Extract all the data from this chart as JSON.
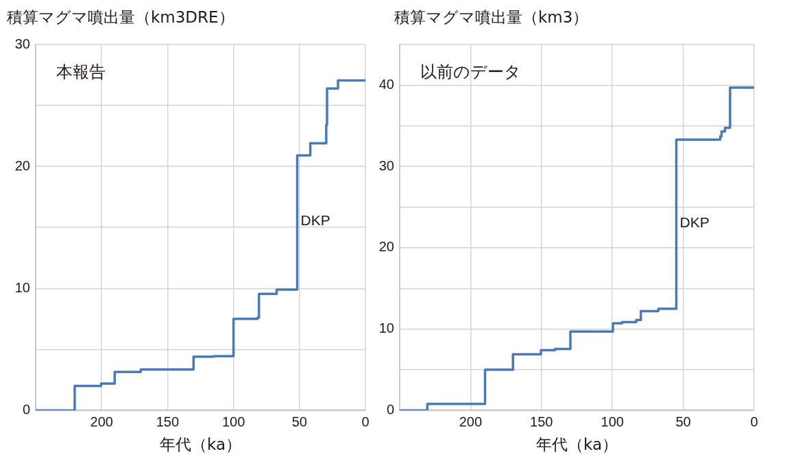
{
  "chart_data": [
    {
      "type": "step",
      "title": "本報告",
      "ylabel": "積算マグマ噴出量（km3DRE）",
      "xlabel": "年代（ka）",
      "xlim": [
        250,
        0
      ],
      "xticks": [
        200,
        150,
        100,
        50,
        0
      ],
      "ylim": [
        0,
        30
      ],
      "yticks": [
        0,
        {
          "value": 5,
          "label": null
        },
        10,
        {
          "value": 15,
          "label": null
        },
        20,
        {
          "value": 25,
          "label": null
        },
        30
      ],
      "grid": true,
      "marker": "none",
      "annotations": [
        {
          "text": "DKP",
          "x": 51.7,
          "y": 15.5
        }
      ],
      "series": [
        {
          "color": "#4a7ab5",
          "x": [
            250,
            220.4,
            200.4,
            190.1,
            170.3,
            130.3,
            114.9,
            100,
            81.8,
            80.7,
            67.3,
            51.7,
            41.8,
            29.7,
            29.1,
            20.8,
            0
          ],
          "values": [
            0,
            2.0,
            2.2,
            3.15,
            3.35,
            4.4,
            4.45,
            7.5,
            7.6,
            9.55,
            9.9,
            20.9,
            21.9,
            23.4,
            26.4,
            27.05,
            27.05
          ]
        }
      ]
    },
    {
      "type": "step",
      "title": "以前のデータ",
      "ylabel": "積算マグマ噴出量（km3）",
      "xlabel": "年代（ka）",
      "xlim": [
        250,
        0
      ],
      "xticks": [
        200,
        150,
        100,
        50,
        0
      ],
      "ylim": [
        0,
        45
      ],
      "yticks": [
        0,
        {
          "value": 5,
          "label": null
        },
        10,
        {
          "value": 15,
          "label": null
        },
        20,
        {
          "value": 25,
          "label": null
        },
        30,
        {
          "value": 35,
          "label": null
        },
        40,
        {
          "value": 45,
          "label": null
        }
      ],
      "grid": true,
      "marker": "none",
      "annotations": [
        {
          "text": "DKP",
          "x": 54.9,
          "y": 23
        }
      ],
      "series": [
        {
          "color": "#4a7ab5",
          "x": [
            250,
            230.5,
            189.8,
            170.1,
            150.4,
            140.5,
            129.6,
            99.6,
            93.1,
            83.2,
            79.9,
            67.6,
            54.9,
            23.9,
            23.0,
            20.6,
            17.0,
            0
          ],
          "values": [
            0,
            0.8,
            5.0,
            6.9,
            7.4,
            7.55,
            9.7,
            10.7,
            10.85,
            11.1,
            12.2,
            12.5,
            33.3,
            33.7,
            34.3,
            34.75,
            39.7,
            39.7
          ]
        }
      ]
    }
  ]
}
